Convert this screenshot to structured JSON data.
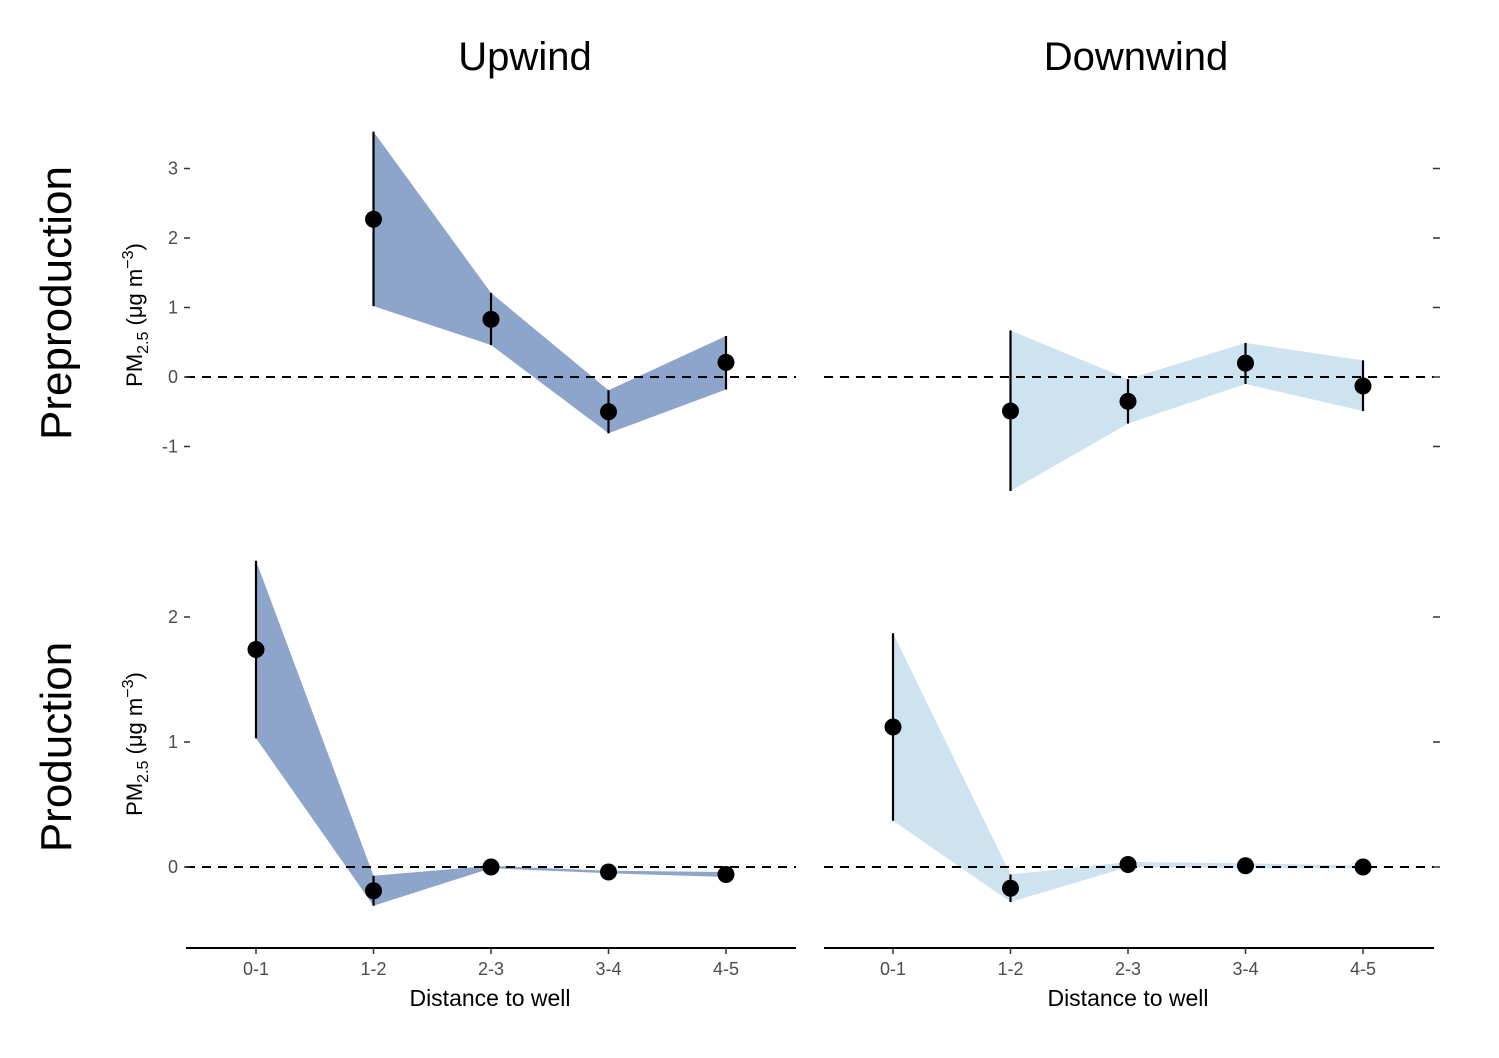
{
  "chart_data": {
    "type": "line",
    "facet_columns": [
      "Upwind",
      "Downwind"
    ],
    "facet_rows": [
      "Preproduction",
      "Production"
    ],
    "categories": [
      "0-1",
      "1-2",
      "2-3",
      "3-4",
      "4-5"
    ],
    "xlabel": "Distance to well",
    "ylabel": {
      "main": "PM",
      "sub": "2.5",
      "unit_open": " (μg m",
      "sup": "−3",
      "unit_close": ")"
    },
    "colors": {
      "Upwind": "#8ea5cb",
      "Downwind": "#cde3ef",
      "point": "#000000",
      "reference": "#000000"
    },
    "reference_line": 0,
    "rows": [
      {
        "name": "Preproduction",
        "ylim": [
          -1.7,
          3.6
        ],
        "yticks": [
          {
            "v": 3,
            "label": "3"
          },
          {
            "v": 2,
            "label": "2"
          },
          {
            "v": 1,
            "label": "1"
          },
          {
            "v": 0,
            "label": "0"
          },
          {
            "v": -1,
            "label": "-1"
          }
        ],
        "panels": [
          {
            "column": "Upwind",
            "points": [
              {
                "category": "1-2",
                "estimate": 2.27,
                "lower": 1.02,
                "upper": 3.53
              },
              {
                "category": "2-3",
                "estimate": 0.83,
                "lower": 0.46,
                "upper": 1.21
              },
              {
                "category": "3-4",
                "estimate": -0.5,
                "lower": -0.81,
                "upper": -0.19
              },
              {
                "category": "4-5",
                "estimate": 0.21,
                "lower": -0.18,
                "upper": 0.59
              }
            ]
          },
          {
            "column": "Downwind",
            "points": [
              {
                "category": "1-2",
                "estimate": -0.49,
                "lower": -1.64,
                "upper": 0.67
              },
              {
                "category": "2-3",
                "estimate": -0.35,
                "lower": -0.67,
                "upper": -0.03
              },
              {
                "category": "3-4",
                "estimate": 0.2,
                "lower": -0.1,
                "upper": 0.49
              },
              {
                "category": "4-5",
                "estimate": -0.13,
                "lower": -0.49,
                "upper": 0.24
              }
            ]
          }
        ]
      },
      {
        "name": "Production",
        "ylim": [
          -0.35,
          2.5
        ],
        "yticks": [
          {
            "v": 2,
            "label": "2"
          },
          {
            "v": 1,
            "label": "1"
          },
          {
            "v": 0,
            "label": "0"
          }
        ],
        "panels": [
          {
            "column": "Upwind",
            "points": [
              {
                "category": "0-1",
                "estimate": 1.74,
                "lower": 1.03,
                "upper": 2.45
              },
              {
                "category": "1-2",
                "estimate": -0.19,
                "lower": -0.31,
                "upper": -0.07
              },
              {
                "category": "2-3",
                "estimate": 0.0,
                "lower": -0.01,
                "upper": 0.01
              },
              {
                "category": "3-4",
                "estimate": -0.04,
                "lower": -0.05,
                "upper": -0.03
              },
              {
                "category": "4-5",
                "estimate": -0.06,
                "lower": -0.08,
                "upper": -0.04
              }
            ]
          },
          {
            "column": "Downwind",
            "points": [
              {
                "category": "0-1",
                "estimate": 1.12,
                "lower": 0.37,
                "upper": 1.87
              },
              {
                "category": "1-2",
                "estimate": -0.17,
                "lower": -0.28,
                "upper": -0.06
              },
              {
                "category": "2-3",
                "estimate": 0.02,
                "lower": 0.0,
                "upper": 0.04
              },
              {
                "category": "3-4",
                "estimate": 0.01,
                "lower": -0.01,
                "upper": 0.03
              },
              {
                "category": "4-5",
                "estimate": 0.0,
                "lower": -0.01,
                "upper": 0.01
              }
            ]
          }
        ]
      }
    ]
  }
}
